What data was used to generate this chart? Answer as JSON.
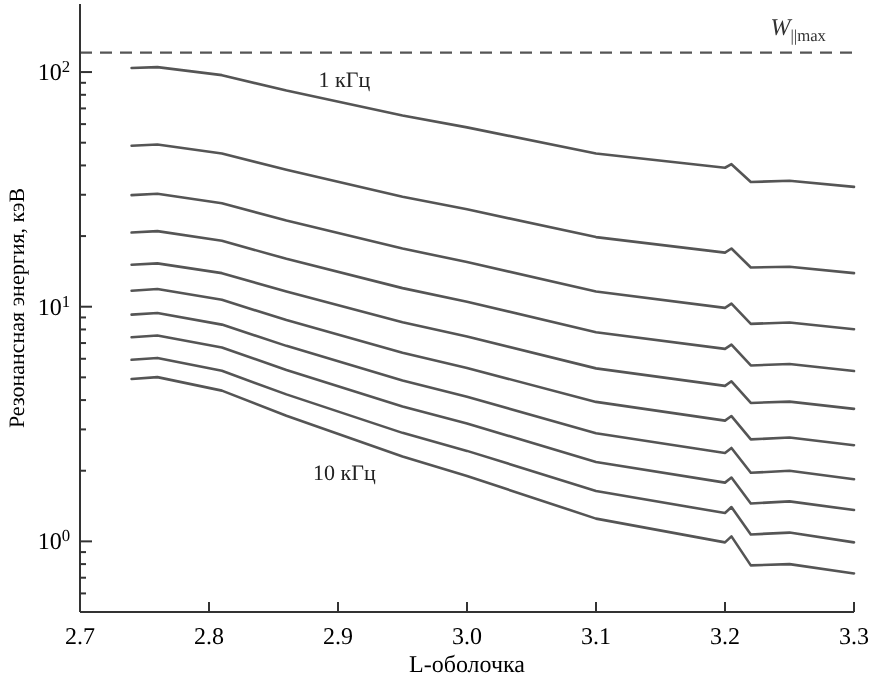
{
  "chart_data": {
    "type": "line",
    "xlabel": "L-оболочка",
    "ylabel": "Резонансная энергия, кэВ",
    "log": "y",
    "grid": false,
    "marker": "none",
    "line_style": "solid",
    "xlim": [
      2.7,
      3.3
    ],
    "xticks": [
      2.7,
      2.8,
      2.9,
      {
        "value": 3,
        "label": "3.0"
      },
      3.1,
      3.2,
      3.3
    ],
    "ylim": [
      0.5,
      195
    ],
    "yticks": [
      {
        "value": 0.6,
        "label": null
      },
      {
        "value": 0.7,
        "label": null
      },
      {
        "value": 0.8,
        "label": null
      },
      {
        "value": 0.9,
        "label": null
      },
      {
        "value": 1,
        "label": "10$^{0}$"
      },
      {
        "value": 2,
        "label": null
      },
      {
        "value": 3,
        "label": null
      },
      {
        "value": 4,
        "label": null
      },
      {
        "value": 5,
        "label": null
      },
      {
        "value": 6,
        "label": null
      },
      {
        "value": 7,
        "label": null
      },
      {
        "value": 8,
        "label": null
      },
      {
        "value": 9,
        "label": null
      },
      {
        "value": 10,
        "label": "10$^{1}$"
      },
      {
        "value": 20,
        "label": null
      },
      {
        "value": 30,
        "label": null
      },
      {
        "value": 40,
        "label": null
      },
      {
        "value": 50,
        "label": null
      },
      {
        "value": 60,
        "label": null
      },
      {
        "value": 70,
        "label": null
      },
      {
        "value": 80,
        "label": null
      },
      {
        "value": 90,
        "label": null
      },
      {
        "value": 100,
        "label": "10$^{2}$"
      }
    ],
    "x": [
      2.74,
      2.76,
      2.81,
      2.86,
      2.95,
      3.0,
      3.1,
      3.2,
      3.205,
      3.22,
      3.25,
      3.3
    ],
    "series": [
      {
        "name": "1 кГц",
        "color": "#555555",
        "values": [
          104,
          105,
          97.0,
          83.4,
          65.3,
          58.1,
          45.0,
          39.1,
          40.5,
          34.0,
          34.4,
          32.4
        ]
      },
      {
        "color": "#555555",
        "values": [
          48.5,
          49.1,
          45.0,
          38.3,
          29.4,
          26.0,
          19.8,
          17.0,
          17.7,
          14.7,
          14.8,
          13.9
        ]
      },
      {
        "color": "#555555",
        "values": [
          29.9,
          30.3,
          27.6,
          23.3,
          17.7,
          15.5,
          11.6,
          9.89,
          10.3,
          8.45,
          8.57,
          8.02
        ]
      },
      {
        "color": "#555555",
        "values": [
          20.7,
          21.0,
          19.1,
          16.0,
          12.0,
          10.5,
          7.78,
          6.61,
          6.89,
          5.62,
          5.7,
          5.32
        ]
      },
      {
        "color": "#555555",
        "values": [
          15.1,
          15.3,
          13.9,
          11.6,
          8.59,
          7.46,
          5.46,
          4.6,
          4.81,
          3.89,
          3.94,
          3.67
        ]
      },
      {
        "color": "#555555",
        "values": [
          11.7,
          11.9,
          10.7,
          8.77,
          6.37,
          5.48,
          3.93,
          3.27,
          3.42,
          2.72,
          2.77,
          2.57
        ]
      },
      {
        "color": "#555555",
        "values": [
          9.25,
          9.4,
          8.39,
          6.81,
          4.85,
          4.13,
          2.89,
          2.38,
          2.5,
          1.96,
          2.0,
          1.84
        ]
      },
      {
        "color": "#555555",
        "values": [
          7.41,
          7.54,
          6.7,
          5.37,
          3.76,
          3.18,
          2.18,
          1.78,
          1.87,
          1.45,
          1.48,
          1.36
        ]
      },
      {
        "color": "#555555",
        "values": [
          5.94,
          6.05,
          5.33,
          4.23,
          2.9,
          2.43,
          1.64,
          1.32,
          1.4,
          1.07,
          1.09,
          0.99
        ]
      },
      {
        "name": "10 кГц",
        "color": "#555555",
        "values": [
          4.92,
          5.01,
          4.39,
          3.43,
          2.3,
          1.9,
          1.25,
          0.99,
          1.05,
          0.79,
          0.8,
          0.73
        ]
      }
    ],
    "ref_lines": [
      {
        "axis": "y",
        "value": 121,
        "label": "W$_{||max}$",
        "color": "#555555",
        "line_style": "dashed"
      }
    ]
  }
}
